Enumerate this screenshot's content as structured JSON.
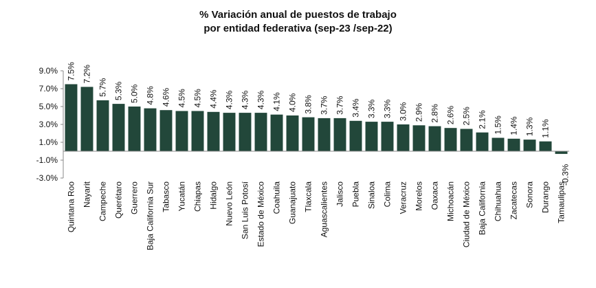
{
  "chart_data": {
    "type": "bar",
    "title": "% Variación anual de puestos de trabajo",
    "subtitle": "por entidad federativa (sep-23 /sep-22)",
    "xlabel": "",
    "ylabel": "",
    "ylim": [
      -3.0,
      9.0
    ],
    "yticks": [
      "9.0%",
      "7.0%",
      "5.0%",
      "3.0%",
      "1.0%",
      "-1.0%",
      "-3.0%"
    ],
    "ytick_values": [
      9.0,
      7.0,
      5.0,
      3.0,
      1.0,
      -1.0,
      -3.0
    ],
    "grid": false,
    "bar_color": "#22473a",
    "categories": [
      "Quintana Roo",
      "Nayarit",
      "Campeche",
      "Querétaro",
      "Guerrero",
      "Baja California Sur",
      "Tabasco",
      "Yucatán",
      "Chiapas",
      "Hidalgo",
      "Nuevo León",
      "San Luis Potosí",
      "Estado de México",
      "Coahuila",
      "Guanajuato",
      "Tlaxcala",
      "Aguascalientes",
      "Jalisco",
      "Puebla",
      "Sinaloa",
      "Colima",
      "Veracruz",
      "Morelos",
      "Oaxaca",
      "Michoacán",
      "Ciudad de México",
      "Baja California",
      "Chihuahua",
      "Zacatecas",
      "Sonora",
      "Durango",
      "Tamaulipas"
    ],
    "values": [
      7.5,
      7.2,
      5.7,
      5.3,
      5.0,
      4.8,
      4.6,
      4.5,
      4.5,
      4.4,
      4.3,
      4.3,
      4.3,
      4.1,
      4.0,
      3.8,
      3.7,
      3.7,
      3.4,
      3.3,
      3.3,
      3.0,
      2.9,
      2.8,
      2.6,
      2.5,
      2.1,
      1.5,
      1.4,
      1.3,
      1.1,
      -0.3
    ],
    "value_labels": [
      "7.5%",
      "7.2%",
      "5.7%",
      "5.3%",
      "5.0%",
      "4.8%",
      "4.6%",
      "4.5%",
      "4.5%",
      "4.4%",
      "4.3%",
      "4.3%",
      "4.3%",
      "4.1%",
      "4.0%",
      "3.8%",
      "3.7%",
      "3.7%",
      "3.4%",
      "3.3%",
      "3.3%",
      "3.0%",
      "2.9%",
      "2.8%",
      "2.6%",
      "2.5%",
      "2.1%",
      "1.5%",
      "1.4%",
      "1.3%",
      "1.1%",
      "-0.3%"
    ]
  }
}
